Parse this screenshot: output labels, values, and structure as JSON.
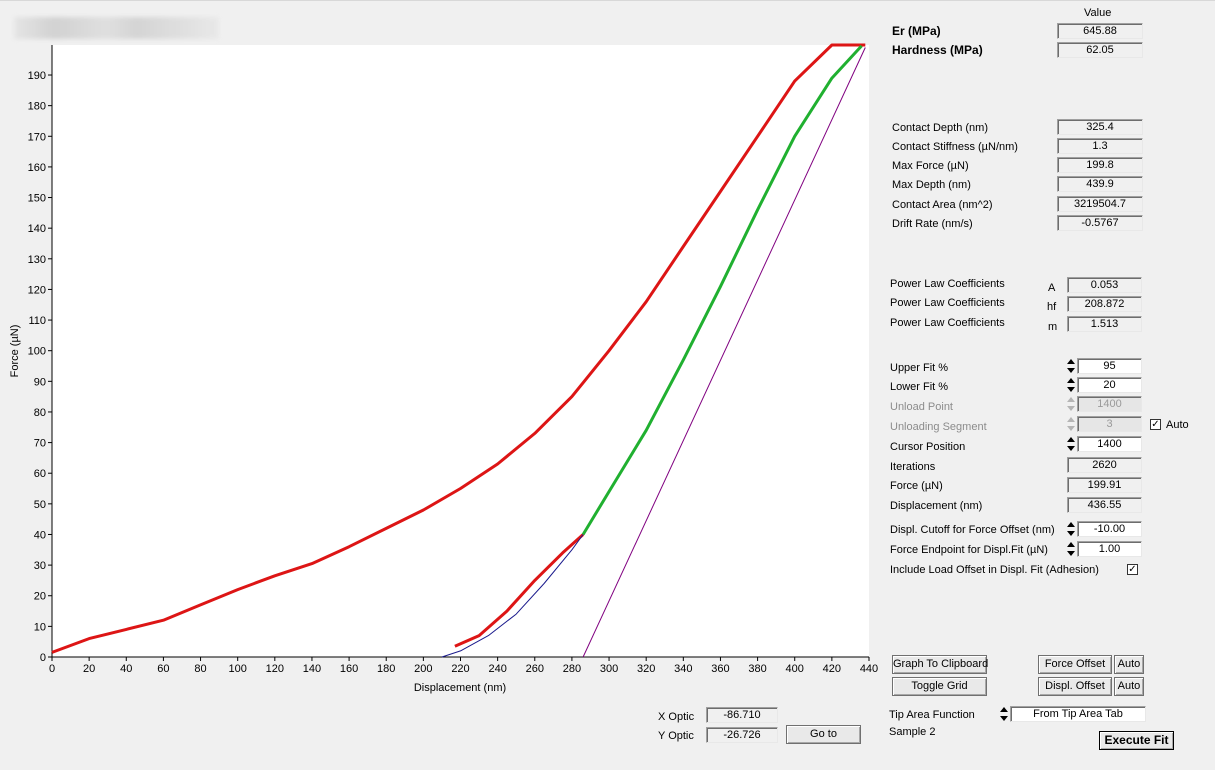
{
  "chart_data": {
    "type": "line",
    "xlabel": "Displacement (nm)",
    "ylabel": "Force (µN)",
    "xlim": [
      0,
      440
    ],
    "ylim": [
      0,
      199.8
    ],
    "x_ticks": [
      0,
      20,
      40,
      60,
      80,
      100,
      120,
      140,
      160,
      180,
      200,
      220,
      240,
      260,
      280,
      300,
      320,
      340,
      360,
      380,
      400,
      420,
      440
    ],
    "y_ticks": [
      0,
      10,
      20,
      30,
      40,
      50,
      60,
      70,
      80,
      90,
      100,
      110,
      120,
      130,
      140,
      150,
      160,
      170,
      180,
      190
    ],
    "grid": false,
    "series": [
      {
        "color": "#dd1515",
        "x": [
          0,
          20,
          40,
          60,
          80,
          100,
          120,
          140,
          160,
          180,
          200,
          220,
          240,
          260,
          280,
          300,
          320,
          340,
          360,
          380,
          400,
          420,
          426,
          432,
          438
        ],
        "y": [
          1.5,
          6,
          9,
          12,
          17,
          22,
          26.5,
          30.5,
          36,
          42,
          48,
          55,
          63,
          73,
          85,
          100,
          116,
          134,
          152,
          170,
          188,
          199.8,
          199.8,
          199.8,
          199.8
        ]
      },
      {
        "color": "#dd1515",
        "x": [
          217,
          230,
          245,
          260,
          275,
          286
        ],
        "y": [
          3.5,
          7,
          15,
          25,
          34,
          40
        ]
      },
      {
        "color": "#20b030",
        "x": [
          286,
          300,
          320,
          340,
          360,
          380,
          400,
          420,
          436
        ],
        "y": [
          40,
          54,
          74,
          97,
          121,
          146,
          170,
          189,
          199.5
        ]
      },
      {
        "color": "#1a1a8c",
        "x": [
          210,
          220,
          235,
          250,
          265,
          280,
          286
        ],
        "y": [
          0,
          2,
          7,
          14,
          24,
          35,
          40
        ]
      },
      {
        "color": "#800080",
        "x": [
          286,
          438
        ],
        "y": [
          0,
          199
        ]
      }
    ]
  },
  "results": {
    "header": "Value",
    "er_label": "Er (MPa)",
    "er_value": "645.88",
    "hardness_label": "Hardness (MPa)",
    "hardness_value": "62.05"
  },
  "contact": {
    "depth_label": "Contact Depth (nm)",
    "depth_value": "325.4",
    "stiffness_label": "Contact Stiffness (µN/nm)",
    "stiffness_value": "1.3",
    "maxforce_label": "Max Force (µN)",
    "maxforce_value": "199.8",
    "maxdepth_label": "Max Depth (nm)",
    "maxdepth_value": "439.9",
    "area_label": "Contact Area (nm^2)",
    "area_value": "3219504.7",
    "drift_label": "Drift Rate (nm/s)",
    "drift_value": "-0.5767"
  },
  "power_law": {
    "label": "Power Law Coefficients",
    "a_sym": "A",
    "a_value": "0.053",
    "hf_sym": "hf",
    "hf_value": "208.872",
    "m_sym": "m",
    "m_value": "1.513"
  },
  "fit": {
    "upper_label": "Upper Fit %",
    "upper_value": "95",
    "lower_label": "Lower Fit %",
    "lower_value": "20",
    "unload_point_label": "Unload Point",
    "unload_point_value": "1400",
    "unload_seg_label": "Unloading Segment",
    "unload_seg_value": "3",
    "auto_label": "Auto",
    "cursor_label": "Cursor Position",
    "cursor_value": "1400",
    "iter_label": "Iterations",
    "iter_value": "2620",
    "force_label": "Force (µN)",
    "force_value": "199.91",
    "disp_label": "Displacement (nm)",
    "disp_value": "436.55",
    "cutoff_label": "Displ. Cutoff for Force Offset (nm)",
    "cutoff_value": "-10.00",
    "endpoint_label": "Force Endpoint for Displ.Fit (µN)",
    "endpoint_value": "1.00",
    "include_label": "Include Load Offset in Displ. Fit (Adhesion)"
  },
  "buttons": {
    "graph_clipboard": "Graph To Clipboard",
    "toggle_grid": "Toggle Grid",
    "force_offset": "Force Offset",
    "displ_offset": "Displ. Offset",
    "auto1": "Auto",
    "auto2": "Auto",
    "goto": "Go to",
    "execute_fit": "Execute Fit"
  },
  "optic": {
    "x_label": "X Optic",
    "x_value": "-86.710",
    "y_label": "Y Optic",
    "y_value": "-26.726"
  },
  "tip": {
    "label": "Tip Area Function",
    "value": "From Tip Area Tab",
    "sample": "Sample 2"
  }
}
